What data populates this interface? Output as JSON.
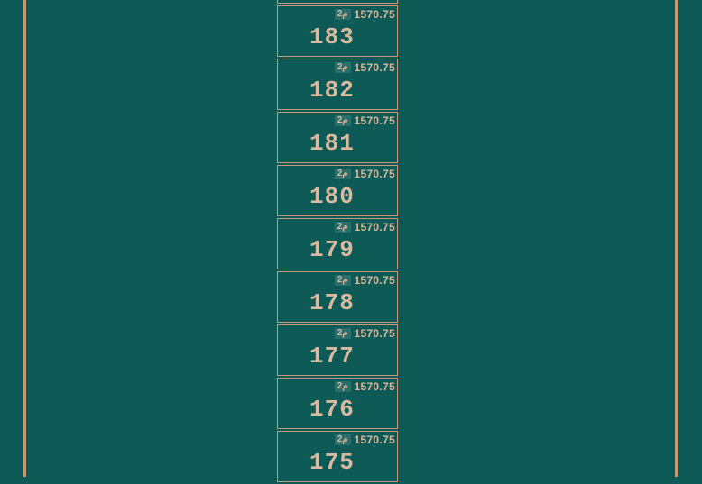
{
  "colors": {
    "background": "#0d5a56",
    "border": "#c89878",
    "text": "#d9b99f",
    "badge_bg": "#2a6f6b"
  },
  "list": {
    "badge_symbol": "2م",
    "items": [
      {
        "id": "183",
        "price": "1570.75"
      },
      {
        "id": "182",
        "price": "1570.75"
      },
      {
        "id": "181",
        "price": "1570.75"
      },
      {
        "id": "180",
        "price": "1570.75"
      },
      {
        "id": "179",
        "price": "1570.75"
      },
      {
        "id": "178",
        "price": "1570.75"
      },
      {
        "id": "177",
        "price": "1570.75"
      },
      {
        "id": "176",
        "price": "1570.75"
      },
      {
        "id": "175",
        "price": "1570.75"
      }
    ]
  }
}
